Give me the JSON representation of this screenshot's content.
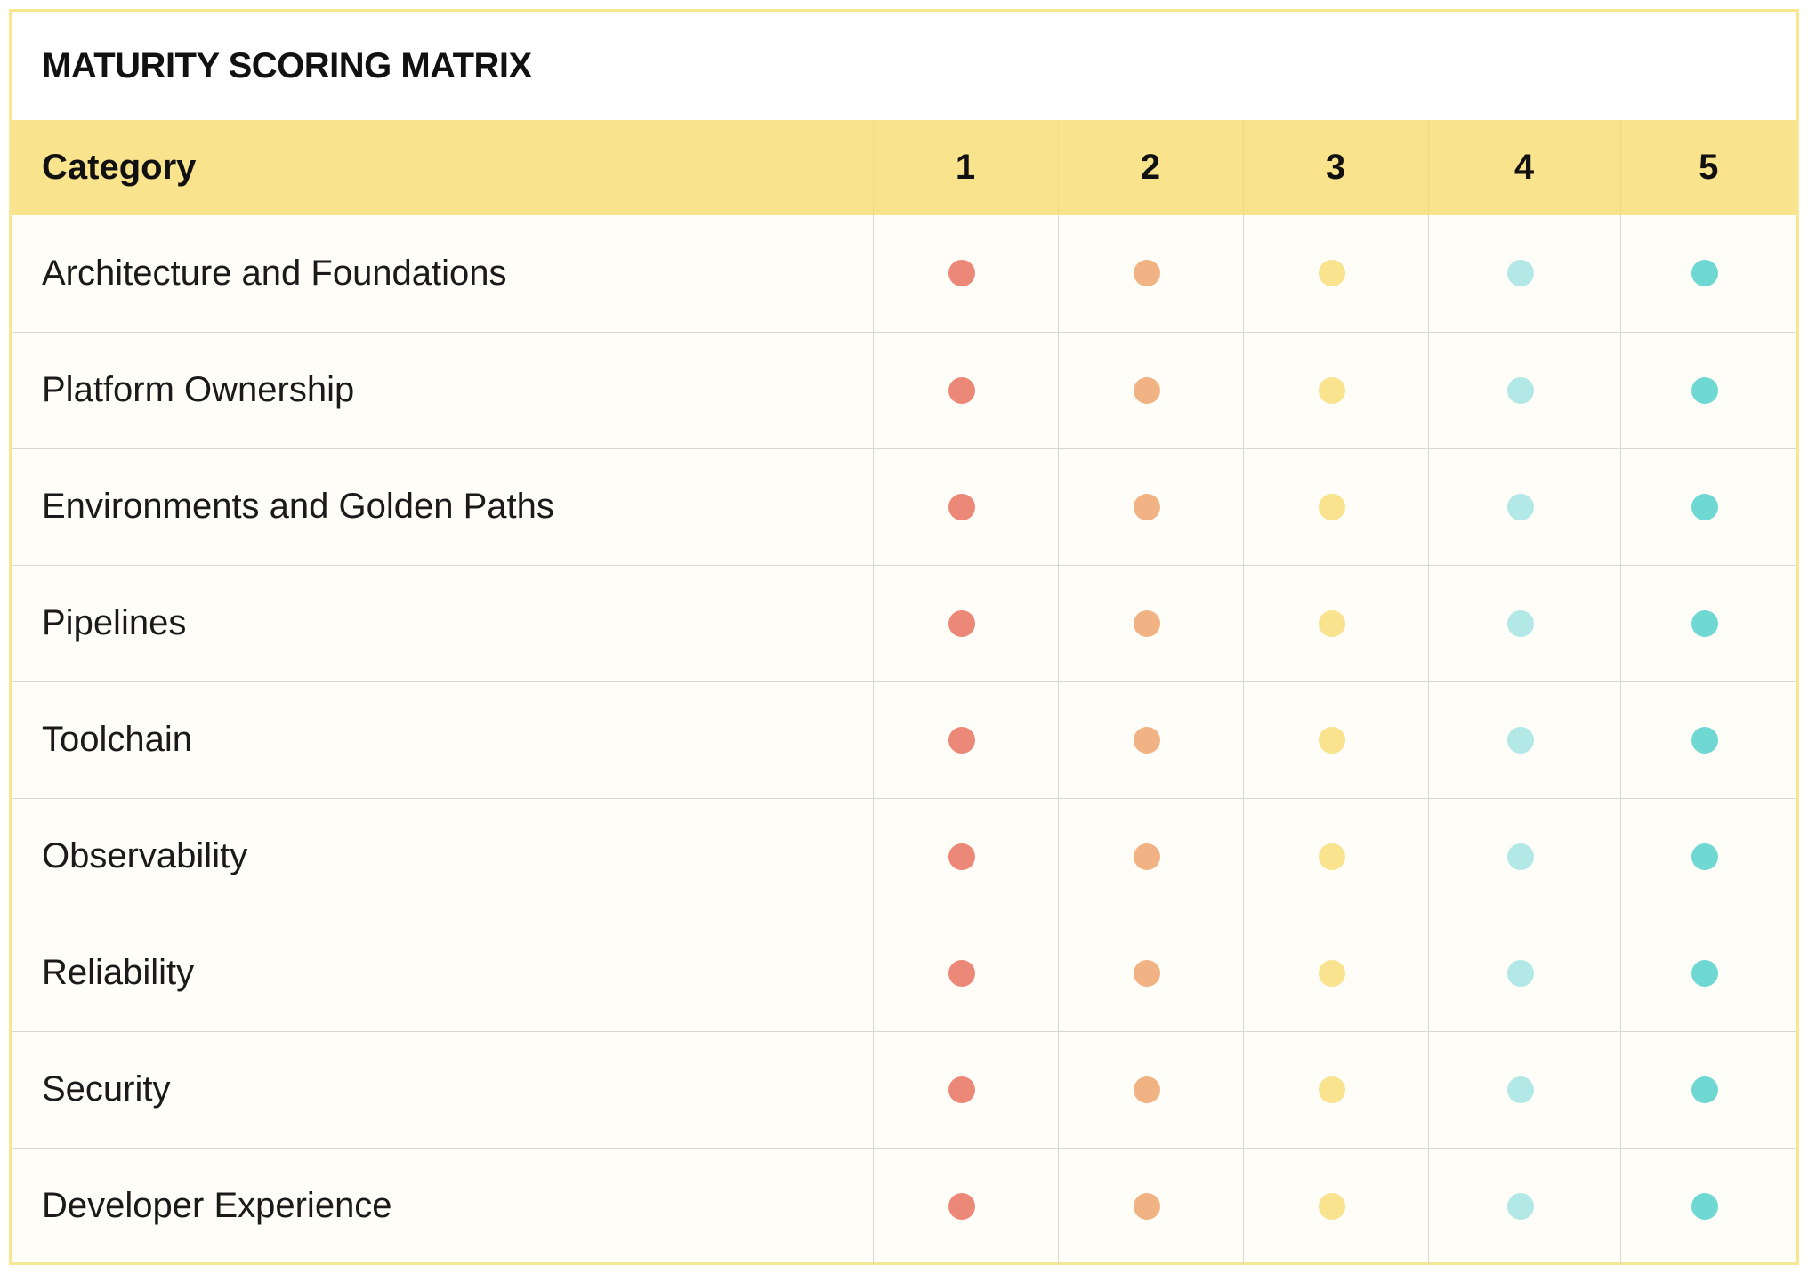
{
  "title": "MATURITY SCORING MATRIX",
  "header": {
    "category_label": "Category",
    "levels": [
      "1",
      "2",
      "3",
      "4",
      "5"
    ]
  },
  "level_colors": [
    "#ec8878",
    "#f2b384",
    "#f9e38e",
    "#b2e8e6",
    "#6fd8d2"
  ],
  "rows": [
    {
      "category": "Architecture and Foundations"
    },
    {
      "category": "Platform Ownership"
    },
    {
      "category": "Environments and Golden Paths"
    },
    {
      "category": "Pipelines"
    },
    {
      "category": "Toolchain"
    },
    {
      "category": "Observability"
    },
    {
      "category": "Reliability"
    },
    {
      "category": "Security"
    },
    {
      "category": "Developer Experience"
    }
  ]
}
